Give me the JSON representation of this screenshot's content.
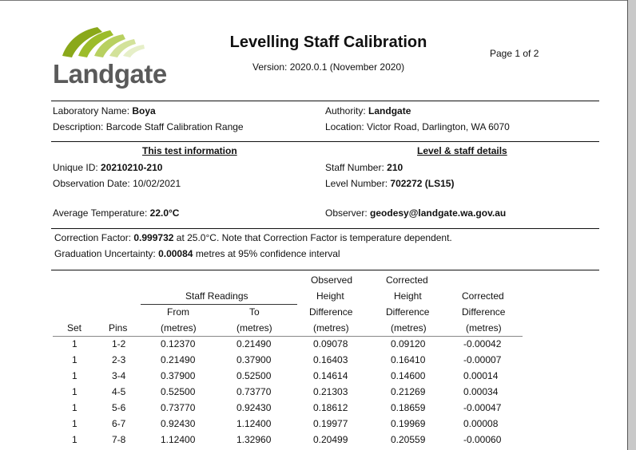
{
  "logo": {
    "name": "Landgate"
  },
  "title": "Levelling Staff Calibration",
  "version": "Version: 2020.0.1 (November 2020)",
  "page": "Page 1 of 2",
  "lab": {
    "label": "Laboratory Name:",
    "value": "Boya"
  },
  "description": {
    "label": "Description:",
    "value": "Barcode Staff Calibration Range"
  },
  "authority": {
    "label": "Authority:",
    "value": "Landgate"
  },
  "location": {
    "label": "Location:",
    "value": "Victor Road, Darlington, WA 6070"
  },
  "test_info_heading": "This test information",
  "level_heading": "Level & staff details",
  "unique_id": {
    "label": "Unique ID:",
    "value": "20210210-210"
  },
  "obs_date": {
    "label": "Observation Date:",
    "value": "10/02/2021"
  },
  "staff_number": {
    "label": "Staff Number:",
    "value": "210"
  },
  "level_number": {
    "label": "Level Number:",
    "value": "702272 (LS15)"
  },
  "avg_temp": {
    "label": "Average Temperature:",
    "value": "22.0°C"
  },
  "observer": {
    "label": "Observer:",
    "value": "geodesy@landgate.wa.gov.au"
  },
  "correction": {
    "label": "Correction Factor:",
    "value": "0.999732",
    "rest": "at 25.0°C. Note that Correction Factor is temperature dependent."
  },
  "graduation": {
    "label": "Graduation Uncertainty:",
    "value": "0.00084",
    "rest": "metres at 95% confidence interval"
  },
  "table": {
    "staff_readings": "Staff Readings",
    "headers": {
      "set": "Set",
      "pins": "Pins",
      "from1": "From",
      "from2": "(metres)",
      "to1": "To",
      "to2": "(metres)",
      "obs1": "Observed",
      "obs2": "Height",
      "obs3": "Difference",
      "obs4": "(metres)",
      "corr1": "Corrected",
      "corr2": "Height",
      "corr3": "Difference",
      "corr4": "(metres)",
      "cd1": "Corrected",
      "cd2": "Difference",
      "cd3": "(metres)"
    },
    "rows": [
      [
        "1",
        "1-2",
        "0.12370",
        "0.21490",
        "0.09078",
        "0.09120",
        "-0.00042"
      ],
      [
        "1",
        "2-3",
        "0.21490",
        "0.37900",
        "0.16403",
        "0.16410",
        "-0.00007"
      ],
      [
        "1",
        "3-4",
        "0.37900",
        "0.52500",
        "0.14614",
        "0.14600",
        "0.00014"
      ],
      [
        "1",
        "4-5",
        "0.52500",
        "0.73770",
        "0.21303",
        "0.21269",
        "0.00034"
      ],
      [
        "1",
        "5-6",
        "0.73770",
        "0.92430",
        "0.18612",
        "0.18659",
        "-0.00047"
      ],
      [
        "1",
        "6-7",
        "0.92430",
        "1.12400",
        "0.19977",
        "0.19969",
        "0.00008"
      ],
      [
        "1",
        "7-8",
        "1.12400",
        "1.32960",
        "0.20499",
        "0.20559",
        "-0.00060"
      ]
    ]
  }
}
